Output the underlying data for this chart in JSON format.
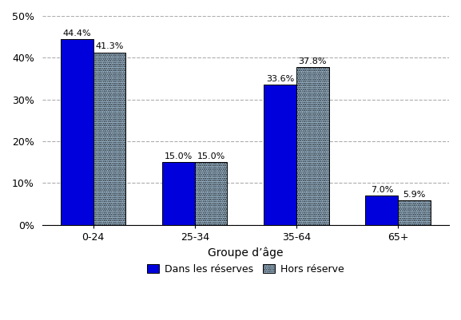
{
  "categories": [
    "0-24",
    "25-34",
    "35-64",
    "65+"
  ],
  "series": [
    {
      "name": "Dans les réserves",
      "values": [
        44.4,
        15.0,
        33.6,
        7.0
      ],
      "color": "#0000DD",
      "edgecolor": "#000000",
      "hatch": null
    },
    {
      "name": "Hors réserve",
      "values": [
        41.3,
        15.0,
        37.8,
        5.9
      ],
      "color": "#B8D8F0",
      "edgecolor": "#000000",
      "hatch": "......."
    }
  ],
  "xlabel": "Groupe d’âge",
  "ylim": [
    0,
    50
  ],
  "yticks": [
    0,
    10,
    20,
    30,
    40,
    50
  ],
  "ytick_labels": [
    "0%",
    "10%",
    "20%",
    "30%",
    "40%",
    "50%"
  ],
  "bar_width": 0.32,
  "label_fontsize": 8,
  "xlabel_fontsize": 10,
  "legend_fontsize": 9,
  "background_color": "#FFFFFF",
  "grid_color": "#999999",
  "grid_linestyle": "--",
  "grid_alpha": 0.8
}
